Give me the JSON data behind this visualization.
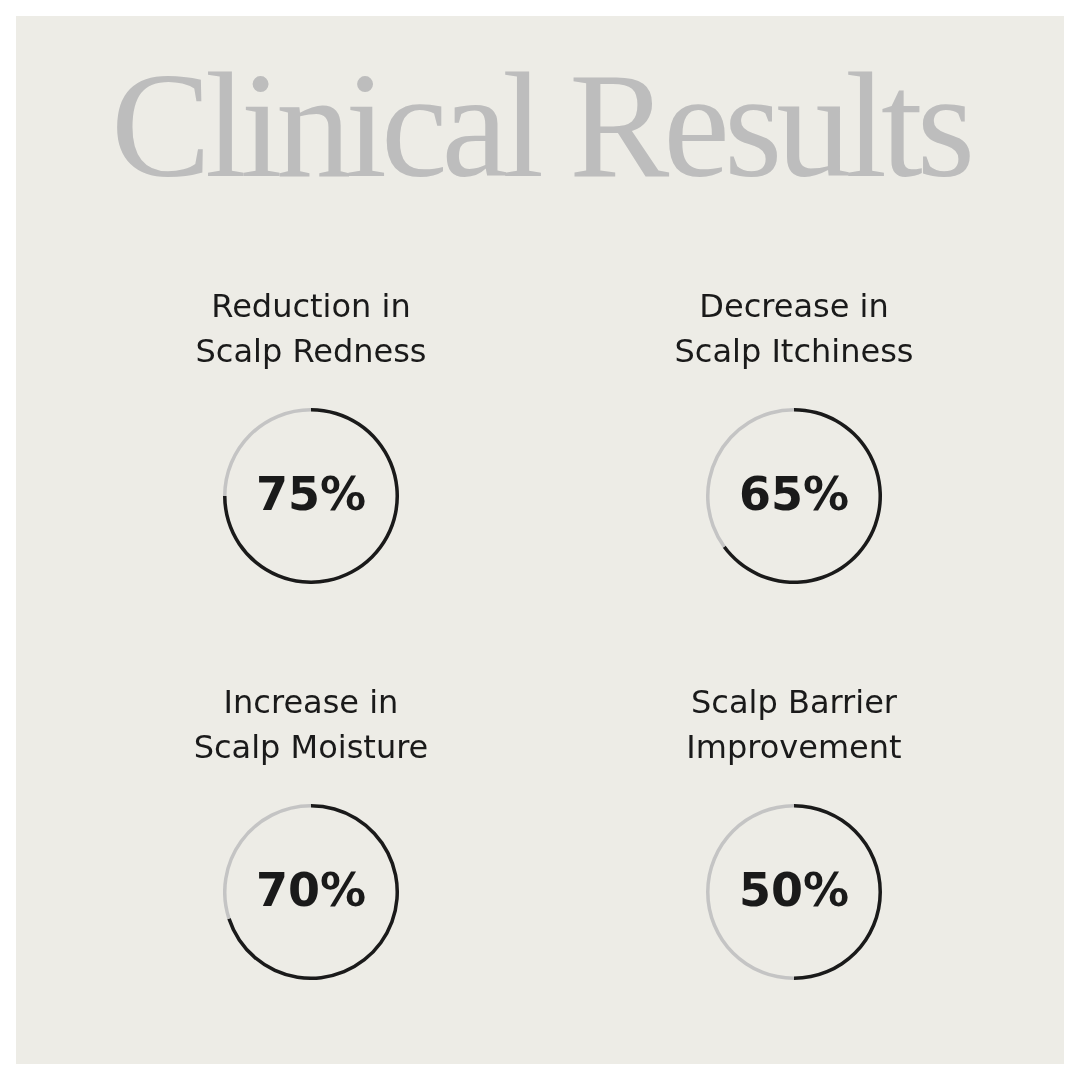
{
  "chart_data": [
    {
      "type": "other",
      "title": "Clinical Results"
    },
    {
      "type": "donut",
      "title": "Reduction in\nScalp Redness",
      "categories": [
        null,
        null
      ],
      "values": [
        75,
        25
      ],
      "colors": [
        "#1a1a1a",
        "#c4c4c4"
      ],
      "value_labels": [
        "75%",
        null
      ]
    },
    {
      "type": "donut",
      "title": "Decrease in\nScalp Itchiness",
      "categories": [
        null,
        null
      ],
      "values": [
        65,
        35
      ],
      "colors": [
        "#1a1a1a",
        "#c4c4c4"
      ],
      "value_labels": [
        "65%",
        null
      ]
    },
    {
      "type": "donut",
      "title": "Increase in\nScalp Moisture",
      "categories": [
        null,
        null
      ],
      "values": [
        70,
        30
      ],
      "colors": [
        "#1a1a1a",
        "#c4c4c4"
      ],
      "value_labels": [
        "70%",
        null
      ]
    },
    {
      "type": "donut",
      "title": "Scalp Barrier\nImprovement",
      "categories": [
        null,
        null
      ],
      "values": [
        50,
        50
      ],
      "colors": [
        "#1a1a1a",
        "#c4c4c4"
      ],
      "value_labels": [
        "50%",
        null
      ]
    }
  ]
}
